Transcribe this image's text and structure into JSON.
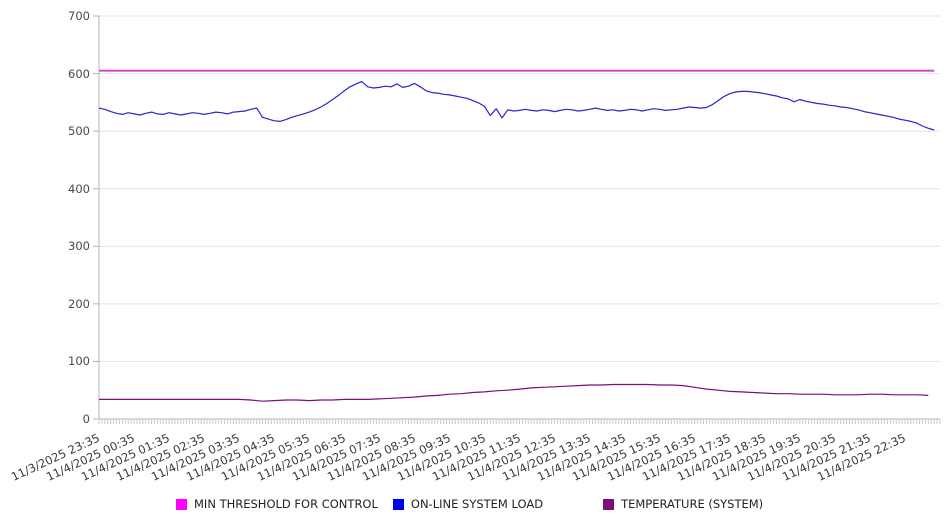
{
  "chart_data": {
    "type": "line",
    "title": "",
    "xlabel": "",
    "ylabel": "",
    "ylim": [
      0,
      700
    ],
    "y_ticks": [
      0,
      100,
      200,
      300,
      400,
      500,
      600,
      700
    ],
    "grid": "horizontal",
    "legend_position": "bottom",
    "x_unit": "minutes since first sample (samples every 5 min, hourly labels)",
    "x_total_min": 1440,
    "minor_tick_step_min": 5,
    "x_tick_step_min": 60,
    "x_tick_labels": [
      "11/3/2025 23:35",
      "11/4/2025 00:35",
      "11/4/2025 01:35",
      "11/4/2025 02:35",
      "11/4/2025 03:35",
      "11/4/2025 04:35",
      "11/4/2025 05:35",
      "11/4/2025 06:35",
      "11/4/2025 07:35",
      "11/4/2025 08:35",
      "11/4/2025 09:35",
      "11/4/2025 10:35",
      "11/4/2025 11:35",
      "11/4/2025 12:35",
      "11/4/2025 13:35",
      "11/4/2025 14:35",
      "11/4/2025 15:35",
      "11/4/2025 16:35",
      "11/4/2025 17:35",
      "11/4/2025 18:35",
      "11/4/2025 19:35",
      "11/4/2025 20:35",
      "11/4/2025 21:35",
      "11/4/2025 22:35"
    ],
    "series": [
      {
        "name": "MIN THRESHOLD FOR CONTROL",
        "swatch_color": "#ff00ff",
        "line_color": "#d63bd6",
        "line_width": 1.8,
        "start_min": 0,
        "step_min": 1430,
        "values": [
          605,
          605
        ]
      },
      {
        "name": "ON-LINE SYSTEM LOAD",
        "swatch_color": "#0000f0",
        "line_color": "#2727cd",
        "line_width": 1.2,
        "start_min": 0,
        "step_min": 10,
        "values": [
          540,
          538,
          534,
          531,
          529,
          532,
          530,
          528,
          531,
          533,
          530,
          529,
          532,
          530,
          528,
          530,
          532,
          531,
          529,
          531,
          533,
          532,
          530,
          533,
          534,
          535,
          538,
          540,
          524,
          521,
          518,
          517,
          520,
          524,
          527,
          530,
          533,
          537,
          542,
          548,
          555,
          562,
          570,
          577,
          582,
          586,
          577,
          575,
          576,
          578,
          577,
          582,
          576,
          578,
          583,
          577,
          570,
          567,
          566,
          564,
          563,
          561,
          559,
          557,
          553,
          549,
          543,
          527,
          539,
          523,
          537,
          535,
          536,
          538,
          536,
          535,
          537,
          536,
          534,
          536,
          538,
          537,
          535,
          536,
          538,
          540,
          538,
          536,
          537,
          535,
          536,
          538,
          537,
          535,
          537,
          539,
          538,
          536,
          537,
          538,
          540,
          542,
          541,
          540,
          541,
          546,
          553,
          560,
          565,
          568,
          569,
          569,
          568,
          567,
          565,
          563,
          561,
          558,
          556,
          551,
          555,
          552,
          550,
          548,
          547,
          545,
          544,
          542,
          541,
          539,
          537,
          534,
          532,
          530,
          528,
          526,
          524,
          521,
          519,
          517,
          514,
          509,
          505,
          502
        ]
      },
      {
        "name": "TEMPERATURE (SYSTEM)",
        "swatch_color": "#7b0e7b",
        "line_color": "#7b0e7b",
        "line_width": 1.2,
        "start_min": 0,
        "step_min": 20,
        "values": [
          34,
          34,
          34,
          34,
          34,
          34,
          34,
          34,
          34,
          34,
          34,
          34,
          34,
          33,
          31,
          32,
          33,
          33,
          32,
          33,
          33,
          34,
          34,
          34,
          35,
          36,
          37,
          38,
          40,
          41,
          43,
          44,
          46,
          47,
          49,
          50,
          52,
          54,
          55,
          56,
          57,
          58,
          59,
          59,
          60,
          60,
          60,
          60,
          59,
          59,
          58,
          55,
          52,
          50,
          48,
          47,
          46,
          45,
          44,
          44,
          43,
          43,
          43,
          42,
          42,
          42,
          43,
          43,
          42,
          42,
          42,
          41
        ]
      }
    ],
    "colors": {
      "background": "#ffffff",
      "gridline": "#e4e4e4",
      "axis_line": "#b4b4b4",
      "minor_tick": "#cbcbcb",
      "y_label_text": "#4a4a4a",
      "x_label_text": "#3a3a3a",
      "legend_text": "#222222"
    }
  }
}
